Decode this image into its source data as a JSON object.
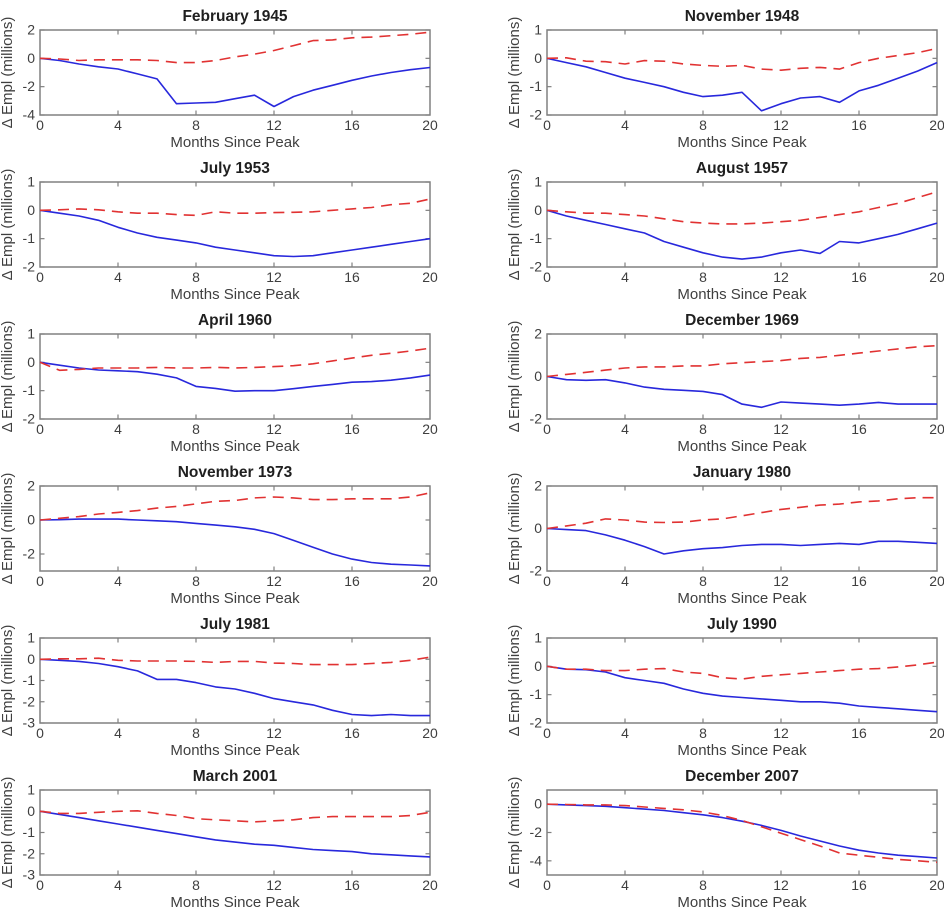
{
  "figure": {
    "xlabel": "Months Since Peak",
    "ylabel": "Δ Empl  (millions)",
    "x_ticks": [
      0,
      4,
      8,
      12,
      16,
      20
    ],
    "xlim": [
      0,
      20
    ],
    "months": [
      0,
      1,
      2,
      3,
      4,
      5,
      6,
      7,
      8,
      9,
      10,
      11,
      12,
      13,
      14,
      15,
      16,
      17,
      18,
      19,
      20
    ],
    "colors": {
      "blue_solid": "#2828dc",
      "red_dashed": "#e13232",
      "axis": "#808080",
      "tick_text": "#3f3f3f",
      "title_text": "#1f1f1f",
      "background": "#ffffff"
    }
  },
  "chart_data": [
    {
      "type": "line",
      "title": "February 1945",
      "ylim": [
        -4,
        2
      ],
      "y_ticks": [
        2,
        0,
        -2,
        -4
      ],
      "series": [
        {
          "name": "blue_solid",
          "values": [
            0,
            -0.15,
            -0.4,
            -0.6,
            -0.75,
            -1.1,
            -1.45,
            -3.2,
            -3.15,
            -3.1,
            -2.85,
            -2.6,
            -3.4,
            -2.7,
            -2.25,
            -1.9,
            -1.55,
            -1.25,
            -1.0,
            -0.8,
            -0.65
          ]
        },
        {
          "name": "red_dashed",
          "values": [
            0,
            -0.05,
            -0.15,
            -0.1,
            -0.1,
            -0.1,
            -0.15,
            -0.3,
            -0.3,
            -0.15,
            0.1,
            0.3,
            0.55,
            0.9,
            1.25,
            1.3,
            1.45,
            1.5,
            1.6,
            1.7,
            1.85
          ]
        }
      ]
    },
    {
      "type": "line",
      "title": "November 1948",
      "ylim": [
        -2,
        1
      ],
      "y_ticks": [
        1,
        0,
        -1,
        -2
      ],
      "series": [
        {
          "name": "blue_solid",
          "values": [
            0,
            -0.15,
            -0.3,
            -0.5,
            -0.7,
            -0.85,
            -1.0,
            -1.2,
            -1.35,
            -1.3,
            -1.2,
            -1.85,
            -1.6,
            -1.4,
            -1.35,
            -1.55,
            -1.15,
            -0.95,
            -0.7,
            -0.45,
            -0.15
          ]
        },
        {
          "name": "red_dashed",
          "values": [
            0,
            0.02,
            -0.1,
            -0.12,
            -0.2,
            -0.08,
            -0.1,
            -0.2,
            -0.25,
            -0.28,
            -0.25,
            -0.38,
            -0.42,
            -0.35,
            -0.32,
            -0.38,
            -0.15,
            0.0,
            0.1,
            0.2,
            0.35
          ]
        }
      ]
    },
    {
      "type": "line",
      "title": "July 1953",
      "ylim": [
        -2,
        1
      ],
      "y_ticks": [
        1,
        0,
        -1,
        -2
      ],
      "series": [
        {
          "name": "blue_solid",
          "values": [
            0,
            -0.1,
            -0.2,
            -0.35,
            -0.6,
            -0.8,
            -0.95,
            -1.05,
            -1.15,
            -1.3,
            -1.4,
            -1.5,
            -1.6,
            -1.63,
            -1.6,
            -1.5,
            -1.4,
            -1.3,
            -1.2,
            -1.1,
            -1.0
          ]
        },
        {
          "name": "red_dashed",
          "values": [
            0,
            0.02,
            0.05,
            0.02,
            -0.05,
            -0.1,
            -0.1,
            -0.15,
            -0.18,
            -0.05,
            -0.1,
            -0.1,
            -0.08,
            -0.07,
            -0.05,
            0.0,
            0.05,
            0.1,
            0.2,
            0.25,
            0.4
          ]
        }
      ]
    },
    {
      "type": "line",
      "title": "August 1957",
      "ylim": [
        -2,
        1
      ],
      "y_ticks": [
        1,
        0,
        -1,
        -2
      ],
      "series": [
        {
          "name": "blue_solid",
          "values": [
            0,
            -0.2,
            -0.35,
            -0.5,
            -0.65,
            -0.8,
            -1.1,
            -1.3,
            -1.5,
            -1.65,
            -1.72,
            -1.65,
            -1.5,
            -1.4,
            -1.52,
            -1.1,
            -1.15,
            -1.0,
            -0.85,
            -0.65,
            -0.45
          ]
        },
        {
          "name": "red_dashed",
          "values": [
            0,
            -0.05,
            -0.1,
            -0.1,
            -0.15,
            -0.2,
            -0.3,
            -0.4,
            -0.45,
            -0.48,
            -0.48,
            -0.45,
            -0.4,
            -0.35,
            -0.25,
            -0.15,
            -0.05,
            0.1,
            0.25,
            0.45,
            0.65
          ]
        }
      ]
    },
    {
      "type": "line",
      "title": "April 1960",
      "ylim": [
        -2,
        1
      ],
      "y_ticks": [
        1,
        0,
        -1,
        -2
      ],
      "series": [
        {
          "name": "blue_solid",
          "values": [
            0,
            -0.1,
            -0.2,
            -0.27,
            -0.3,
            -0.33,
            -0.42,
            -0.55,
            -0.85,
            -0.92,
            -1.02,
            -1.0,
            -1.0,
            -0.93,
            -0.85,
            -0.78,
            -0.7,
            -0.68,
            -0.63,
            -0.55,
            -0.45
          ]
        },
        {
          "name": "red_dashed",
          "values": [
            0,
            -0.28,
            -0.25,
            -0.2,
            -0.2,
            -0.2,
            -0.18,
            -0.2,
            -0.2,
            -0.18,
            -0.2,
            -0.18,
            -0.15,
            -0.12,
            -0.05,
            0.05,
            0.15,
            0.25,
            0.32,
            0.4,
            0.5
          ]
        }
      ]
    },
    {
      "type": "line",
      "title": "December 1969",
      "ylim": [
        -2,
        2
      ],
      "y_ticks": [
        2,
        0,
        -2
      ],
      "series": [
        {
          "name": "blue_solid",
          "values": [
            0,
            -0.15,
            -0.18,
            -0.15,
            -0.3,
            -0.5,
            -0.6,
            -0.65,
            -0.7,
            -0.85,
            -1.3,
            -1.45,
            -1.2,
            -1.25,
            -1.3,
            -1.35,
            -1.3,
            -1.22,
            -1.3,
            -1.3,
            -1.3
          ]
        },
        {
          "name": "red_dashed",
          "values": [
            0,
            0.1,
            0.2,
            0.3,
            0.4,
            0.45,
            0.45,
            0.5,
            0.5,
            0.6,
            0.65,
            0.7,
            0.75,
            0.85,
            0.9,
            1.0,
            1.1,
            1.2,
            1.3,
            1.4,
            1.45
          ]
        }
      ]
    },
    {
      "type": "line",
      "title": "November 1973",
      "ylim": [
        -3,
        2
      ],
      "y_ticks": [
        2,
        0,
        -2
      ],
      "series": [
        {
          "name": "blue_solid",
          "values": [
            0,
            0.02,
            0.05,
            0.05,
            0.05,
            0.0,
            -0.05,
            -0.1,
            -0.2,
            -0.3,
            -0.4,
            -0.55,
            -0.8,
            -1.2,
            -1.6,
            -2.0,
            -2.3,
            -2.5,
            -2.6,
            -2.65,
            -2.7
          ]
        },
        {
          "name": "red_dashed",
          "values": [
            0,
            0.1,
            0.2,
            0.35,
            0.45,
            0.55,
            0.7,
            0.8,
            0.95,
            1.1,
            1.15,
            1.3,
            1.35,
            1.3,
            1.2,
            1.2,
            1.25,
            1.25,
            1.25,
            1.35,
            1.6
          ]
        }
      ]
    },
    {
      "type": "line",
      "title": "January 1980",
      "ylim": [
        -2,
        2
      ],
      "y_ticks": [
        2,
        0,
        -2
      ],
      "series": [
        {
          "name": "blue_solid",
          "values": [
            0,
            -0.05,
            -0.1,
            -0.3,
            -0.55,
            -0.85,
            -1.2,
            -1.05,
            -0.95,
            -0.9,
            -0.8,
            -0.75,
            -0.75,
            -0.8,
            -0.75,
            -0.7,
            -0.75,
            -0.6,
            -0.6,
            -0.65,
            -0.7
          ]
        },
        {
          "name": "red_dashed",
          "values": [
            0,
            0.12,
            0.25,
            0.45,
            0.4,
            0.3,
            0.28,
            0.3,
            0.4,
            0.45,
            0.6,
            0.75,
            0.9,
            1.0,
            1.1,
            1.15,
            1.25,
            1.3,
            1.4,
            1.45,
            1.45
          ]
        }
      ]
    },
    {
      "type": "line",
      "title": "July 1981",
      "ylim": [
        -3,
        1
      ],
      "y_ticks": [
        1,
        0,
        -1,
        -2,
        -3
      ],
      "series": [
        {
          "name": "blue_solid",
          "values": [
            0,
            -0.05,
            -0.1,
            -0.2,
            -0.35,
            -0.55,
            -0.95,
            -0.95,
            -1.1,
            -1.3,
            -1.4,
            -1.6,
            -1.85,
            -2.0,
            -2.15,
            -2.4,
            -2.6,
            -2.65,
            -2.6,
            -2.65,
            -2.65
          ]
        },
        {
          "name": "red_dashed",
          "values": [
            0,
            0.02,
            0.02,
            0.05,
            -0.05,
            -0.08,
            -0.08,
            -0.08,
            -0.1,
            -0.15,
            -0.1,
            -0.1,
            -0.18,
            -0.2,
            -0.25,
            -0.25,
            -0.25,
            -0.2,
            -0.15,
            -0.05,
            0.1
          ]
        }
      ]
    },
    {
      "type": "line",
      "title": "July 1990",
      "ylim": [
        -2,
        1
      ],
      "y_ticks": [
        1,
        0,
        -1,
        -2
      ],
      "series": [
        {
          "name": "blue_solid",
          "values": [
            0,
            -0.1,
            -0.12,
            -0.2,
            -0.4,
            -0.5,
            -0.6,
            -0.8,
            -0.95,
            -1.05,
            -1.1,
            -1.15,
            -1.2,
            -1.25,
            -1.25,
            -1.3,
            -1.4,
            -1.45,
            -1.5,
            -1.55,
            -1.6
          ]
        },
        {
          "name": "red_dashed",
          "values": [
            0,
            -0.1,
            -0.1,
            -0.15,
            -0.15,
            -0.1,
            -0.08,
            -0.2,
            -0.25,
            -0.4,
            -0.45,
            -0.35,
            -0.3,
            -0.25,
            -0.2,
            -0.15,
            -0.1,
            -0.08,
            -0.02,
            0.05,
            0.15
          ]
        }
      ]
    },
    {
      "type": "line",
      "title": "March 2001",
      "ylim": [
        -3,
        1
      ],
      "y_ticks": [
        1,
        0,
        -1,
        -2,
        -3
      ],
      "series": [
        {
          "name": "blue_solid",
          "values": [
            0,
            -0.15,
            -0.3,
            -0.45,
            -0.6,
            -0.75,
            -0.9,
            -1.05,
            -1.2,
            -1.35,
            -1.45,
            -1.55,
            -1.6,
            -1.7,
            -1.8,
            -1.85,
            -1.9,
            -2.0,
            -2.05,
            -2.1,
            -2.15
          ]
        },
        {
          "name": "red_dashed",
          "values": [
            0,
            -0.1,
            -0.1,
            -0.05,
            0.0,
            0.02,
            -0.1,
            -0.2,
            -0.35,
            -0.4,
            -0.45,
            -0.5,
            -0.45,
            -0.4,
            -0.3,
            -0.25,
            -0.25,
            -0.25,
            -0.25,
            -0.2,
            -0.05
          ]
        }
      ]
    },
    {
      "type": "line",
      "title": "December 2007",
      "ylim": [
        -5,
        1
      ],
      "y_ticks": [
        0,
        -2,
        -4
      ],
      "series": [
        {
          "name": "blue_solid",
          "values": [
            0,
            -0.05,
            -0.1,
            -0.15,
            -0.25,
            -0.35,
            -0.45,
            -0.6,
            -0.75,
            -0.95,
            -1.2,
            -1.5,
            -1.85,
            -2.25,
            -2.6,
            -2.95,
            -3.25,
            -3.45,
            -3.6,
            -3.7,
            -3.8
          ]
        },
        {
          "name": "red_dashed",
          "values": [
            0,
            -0.02,
            -0.05,
            -0.05,
            -0.1,
            -0.2,
            -0.3,
            -0.4,
            -0.55,
            -0.8,
            -1.15,
            -1.6,
            -2.05,
            -2.5,
            -2.95,
            -3.45,
            -3.6,
            -3.75,
            -3.9,
            -4.0,
            -4.1
          ]
        }
      ]
    }
  ]
}
